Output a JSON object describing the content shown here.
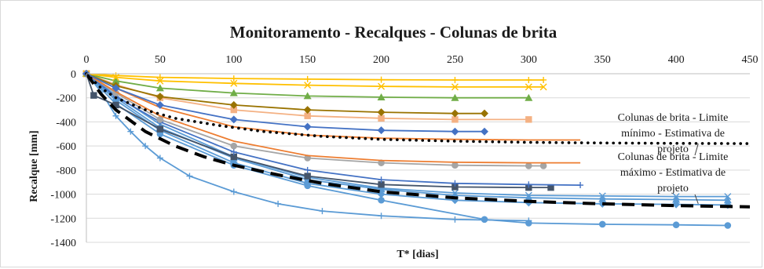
{
  "chart_data": {
    "type": "line",
    "title": "Monitoramento - Recalques - Colunas de brita",
    "xlabel": "T* [dias]",
    "ylabel": "Recalque [mm]",
    "xlim": [
      0,
      450
    ],
    "ylim": [
      -1400,
      0
    ],
    "x_axis_position": "top",
    "x_ticks": [
      "0",
      "50",
      "100",
      "150",
      "200",
      "250",
      "300",
      "350",
      "400",
      "450"
    ],
    "y_ticks": [
      "0",
      "-200",
      "-400",
      "-600",
      "-800",
      "-1000",
      "-1200",
      "-1400"
    ],
    "grid": "horizontal",
    "annotations": [
      {
        "lines": [
          "Colunas de brita - Limite",
          "mínimo - Estimativa de",
          "projeto"
        ],
        "points_to": [
          415,
          -580
        ]
      },
      {
        "lines": [
          "Colunas de brita - Limite",
          "máximo - Estimativa de",
          "projeto"
        ],
        "points_to": [
          415,
          -1080
        ]
      }
    ],
    "series": [
      {
        "color": "#000000",
        "style": "dotted",
        "x": [
          0,
          10,
          20,
          40,
          60,
          90,
          120,
          160,
          200,
          250,
          300,
          350,
          400,
          450
        ],
        "y": [
          0,
          -120,
          -200,
          -300,
          -370,
          -430,
          -480,
          -520,
          -545,
          -560,
          -570,
          -575,
          -578,
          -580
        ]
      },
      {
        "color": "#000000",
        "style": "dashed",
        "x": [
          0,
          10,
          20,
          40,
          60,
          80,
          100,
          130,
          160,
          200,
          250,
          300,
          350,
          400,
          450
        ],
        "y": [
          0,
          -170,
          -300,
          -480,
          -600,
          -690,
          -760,
          -840,
          -910,
          -980,
          -1030,
          -1060,
          -1080,
          -1095,
          -1105
        ]
      },
      {
        "color": "#5b9bd5",
        "marker": "plus",
        "x": [
          0,
          10,
          20,
          30,
          40,
          50,
          70,
          100,
          130,
          160,
          200,
          250,
          300
        ],
        "y": [
          0,
          -150,
          -350,
          -480,
          -600,
          -700,
          -850,
          -980,
          -1080,
          -1140,
          -1180,
          -1210,
          -1220
        ]
      },
      {
        "color": "#5b9bd5",
        "marker": "circle",
        "x": [
          0,
          20,
          50,
          100,
          150,
          200,
          270,
          300,
          350,
          400,
          435
        ],
        "y": [
          0,
          -250,
          -500,
          -760,
          -930,
          -1050,
          -1210,
          -1240,
          -1250,
          -1255,
          -1260
        ]
      },
      {
        "color": "#5b9bd5",
        "marker": "triangle",
        "x": [
          0,
          20,
          50,
          100,
          150,
          200,
          250,
          300,
          350,
          400,
          435
        ],
        "y": [
          0,
          -200,
          -450,
          -700,
          -880,
          -960,
          -1010,
          -1030,
          -1040,
          -1045,
          -1050
        ]
      },
      {
        "color": "#5b9bd5",
        "marker": "diamond",
        "x": [
          0,
          20,
          50,
          100,
          150,
          200,
          250,
          300,
          350,
          400,
          435
        ],
        "y": [
          0,
          -220,
          -470,
          -740,
          -910,
          -1000,
          -1050,
          -1070,
          -1080,
          -1085,
          -1090
        ]
      },
      {
        "color": "#5b9bd5",
        "marker": "cross",
        "x": [
          0,
          20,
          50,
          100,
          150,
          200,
          250,
          300,
          350,
          400,
          435
        ],
        "y": [
          0,
          -180,
          -420,
          -690,
          -860,
          -950,
          -990,
          -1010,
          -1015,
          -1020,
          -1020
        ]
      },
      {
        "color": "#44546a",
        "marker": "square",
        "x": [
          0,
          5,
          20,
          50,
          100,
          150,
          200,
          250,
          300,
          315
        ],
        "y": [
          0,
          -180,
          -260,
          -460,
          -690,
          -850,
          -920,
          -940,
          -945,
          -945
        ]
      },
      {
        "color": "#4472c4",
        "marker": "plus",
        "x": [
          0,
          20,
          50,
          100,
          150,
          200,
          250,
          300,
          335
        ],
        "y": [
          0,
          -190,
          -400,
          -650,
          -800,
          -880,
          -910,
          -920,
          -925
        ]
      },
      {
        "color": "#a5a5a5",
        "marker": "circle",
        "x": [
          0,
          20,
          50,
          100,
          150,
          200,
          250,
          300,
          310
        ],
        "y": [
          0,
          -160,
          -380,
          -600,
          -700,
          -740,
          -760,
          -765,
          -765
        ]
      },
      {
        "color": "#ed7d31",
        "marker": "none",
        "x": [
          0,
          20,
          50,
          100,
          150,
          200,
          250,
          300,
          335
        ],
        "y": [
          0,
          -150,
          -350,
          -560,
          -680,
          -720,
          -735,
          -740,
          -740
        ]
      },
      {
        "color": "#ed7d31",
        "marker": "none",
        "x": [
          0,
          20,
          50,
          100,
          150,
          200,
          250,
          300,
          335
        ],
        "y": [
          0,
          -120,
          -280,
          -440,
          -510,
          -535,
          -545,
          -550,
          -550
        ]
      },
      {
        "color": "#f4b183",
        "marker": "square",
        "x": [
          0,
          20,
          50,
          100,
          150,
          200,
          250,
          300
        ],
        "y": [
          0,
          -90,
          -200,
          -300,
          -350,
          -370,
          -380,
          -380
        ]
      },
      {
        "color": "#70ad47",
        "marker": "triangle",
        "x": [
          0,
          20,
          50,
          100,
          150,
          200,
          250,
          300
        ],
        "y": [
          0,
          -60,
          -120,
          -160,
          -185,
          -195,
          -200,
          -200
        ]
      },
      {
        "color": "#ffc000",
        "marker": "cross",
        "x": [
          0,
          20,
          50,
          100,
          150,
          200,
          250,
          300,
          310
        ],
        "y": [
          0,
          -30,
          -60,
          -80,
          -95,
          -105,
          -110,
          -110,
          -110
        ]
      },
      {
        "color": "#ffc000",
        "marker": "plus",
        "x": [
          0,
          20,
          50,
          100,
          150,
          200,
          250,
          300,
          310
        ],
        "y": [
          0,
          -15,
          -30,
          -40,
          -45,
          -50,
          -52,
          -52,
          -52
        ]
      },
      {
        "color": "#997300",
        "marker": "diamond",
        "x": [
          0,
          20,
          50,
          100,
          150,
          200,
          250,
          270
        ],
        "y": [
          0,
          -100,
          -190,
          -260,
          -300,
          -320,
          -330,
          -330
        ]
      },
      {
        "color": "#4472c4",
        "marker": "diamond",
        "x": [
          0,
          20,
          50,
          100,
          150,
          200,
          250,
          270
        ],
        "y": [
          0,
          -120,
          -260,
          -380,
          -440,
          -470,
          -480,
          -480
        ]
      }
    ]
  }
}
